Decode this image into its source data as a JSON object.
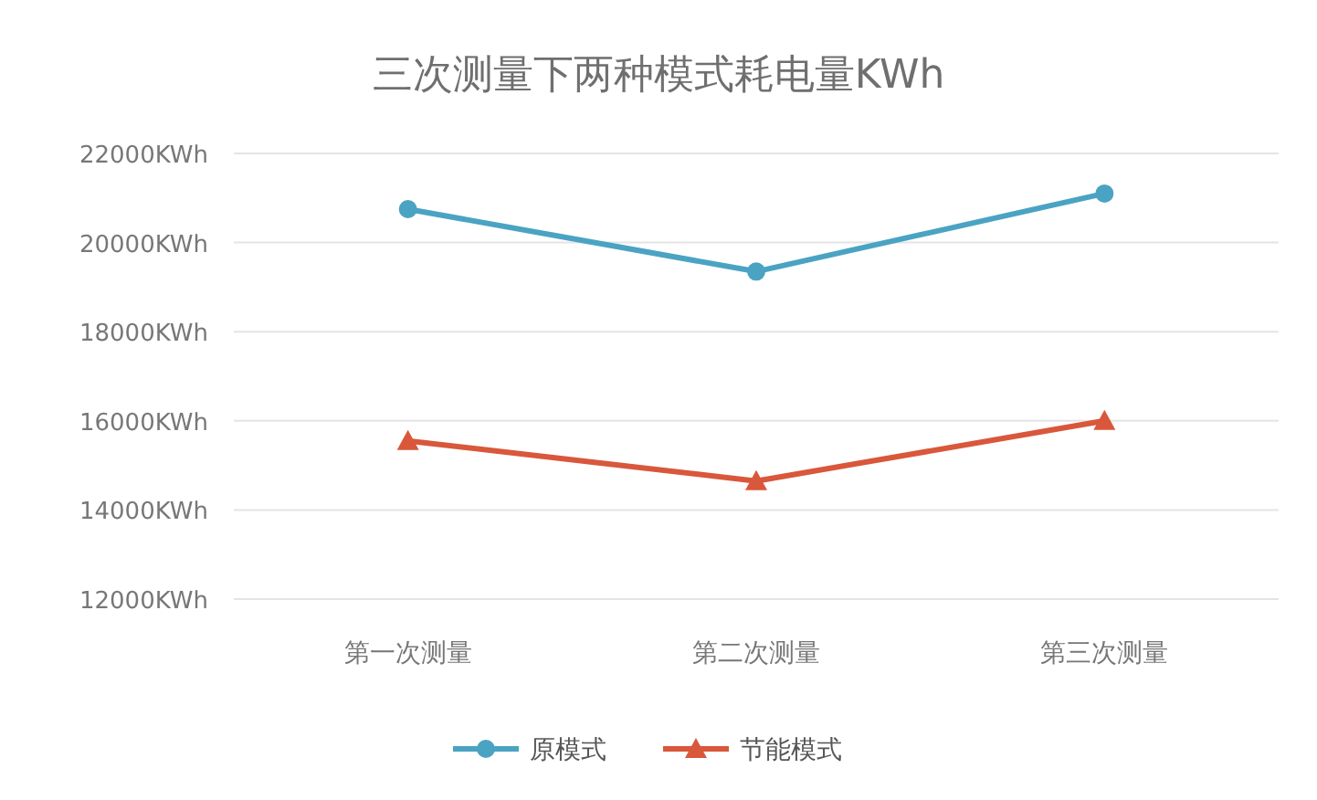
{
  "chart_data": {
    "type": "line",
    "title": "三次测量下两种模式耗电量KWh",
    "categories": [
      "第一次测量",
      "第二次测量",
      "第三次测量"
    ],
    "series": [
      {
        "name": "原模式",
        "color": "#4ba3c3",
        "marker": "circle",
        "values": [
          20750,
          19350,
          21100
        ]
      },
      {
        "name": "节能模式",
        "color": "#d9573b",
        "marker": "triangle",
        "values": [
          15550,
          14650,
          16000
        ]
      }
    ],
    "ylim": [
      12000,
      22000
    ],
    "yticks": [
      {
        "value": 12000,
        "label": "12000KWh"
      },
      {
        "value": 14000,
        "label": "14000KWh"
      },
      {
        "value": 16000,
        "label": "16000KWh"
      },
      {
        "value": 18000,
        "label": "18000KWh"
      },
      {
        "value": 20000,
        "label": "20000KWh"
      },
      {
        "value": 22000,
        "label": "22000KWh"
      }
    ],
    "grid": "y",
    "legend": "bottom"
  }
}
